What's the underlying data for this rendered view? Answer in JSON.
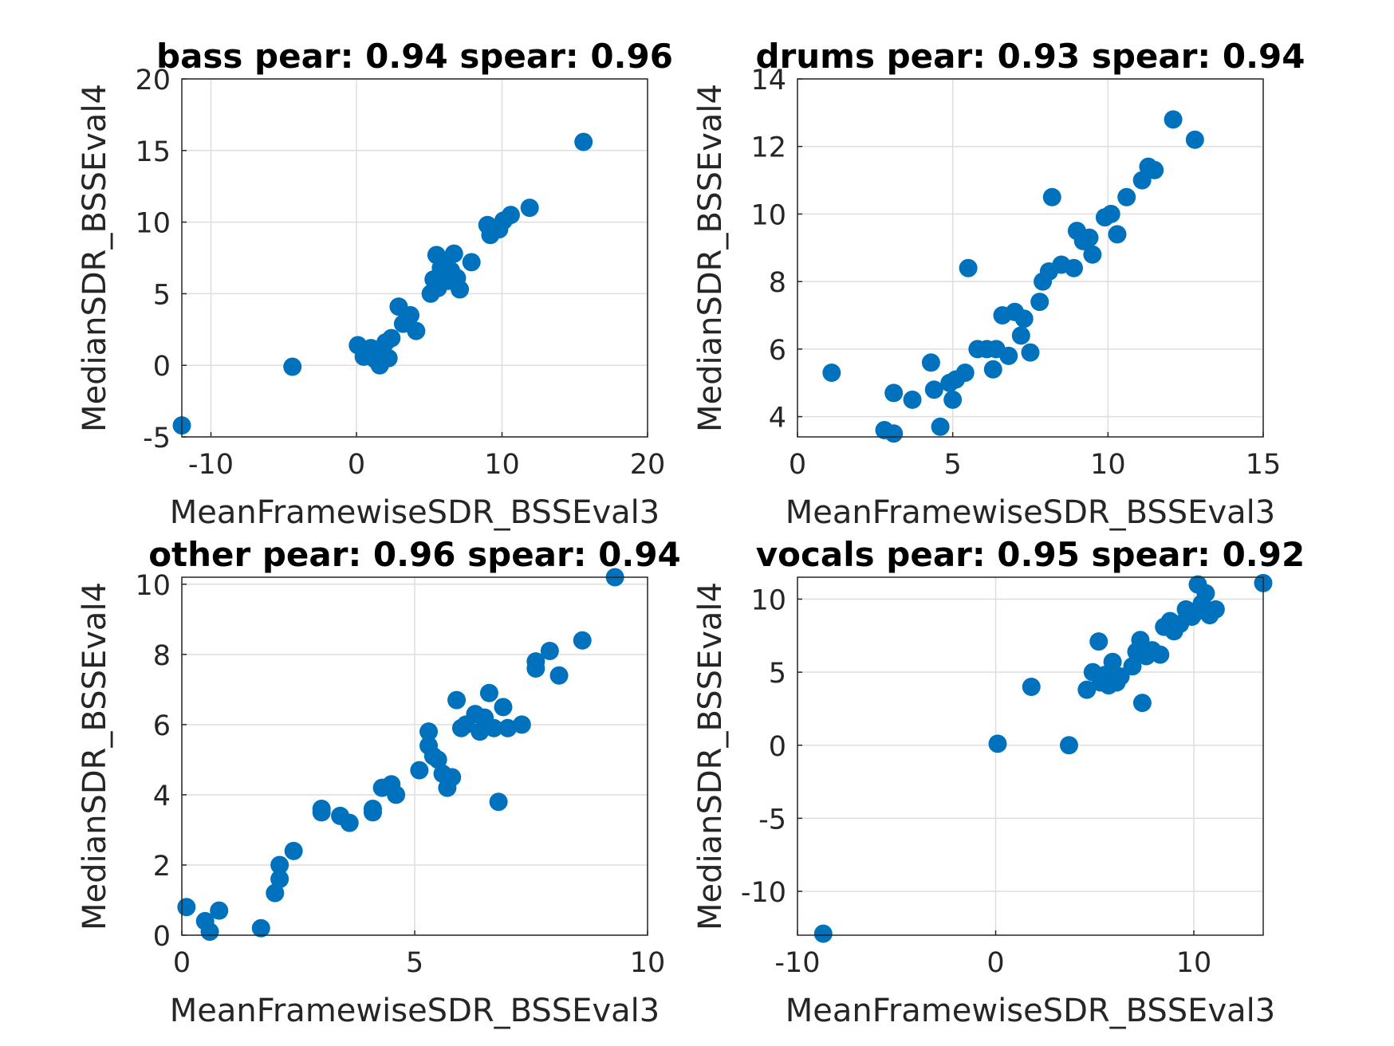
{
  "chart_data": [
    {
      "type": "scatter",
      "title": "bass pear: 0.94 spear: 0.96",
      "xlabel": "MeanFramewiseSDR_BSSEval3",
      "ylabel": "MedianSDR_BSSEval4",
      "xlim": [
        -12,
        20
      ],
      "ylim": [
        -5,
        20
      ],
      "xticks": [
        -10,
        0,
        10,
        20
      ],
      "yticks": [
        -5,
        0,
        5,
        10,
        15,
        20
      ],
      "grid": true,
      "color": "#0072BD",
      "series": [
        {
          "x": [
            -12.0,
            -4.4,
            0.1,
            0.5,
            1.0,
            1.3,
            1.6,
            1.8,
            2.0,
            2.2,
            2.4,
            2.9,
            3.2,
            3.7,
            4.1,
            5.1,
            5.3,
            5.5,
            5.6,
            5.8,
            5.9,
            6.1,
            6.3,
            6.5,
            6.7,
            6.9,
            7.1,
            7.9,
            9.0,
            9.2,
            9.8,
            10.1,
            10.6,
            11.9,
            15.6
          ],
          "y": [
            -4.2,
            -0.1,
            1.4,
            0.6,
            1.2,
            0.4,
            0.0,
            0.9,
            1.6,
            0.5,
            1.9,
            4.1,
            2.9,
            3.5,
            2.4,
            5.0,
            6.0,
            7.7,
            5.4,
            6.8,
            6.2,
            7.2,
            5.9,
            6.6,
            7.8,
            6.1,
            5.3,
            7.2,
            9.8,
            9.1,
            9.5,
            10.1,
            10.5,
            11.0,
            15.6
          ]
        }
      ]
    },
    {
      "type": "scatter",
      "title": "drums pear: 0.93 spear: 0.94",
      "xlabel": "MeanFramewiseSDR_BSSEval3",
      "ylabel": "MedianSDR_BSSEval4",
      "xlim": [
        0,
        15
      ],
      "ylim": [
        3.4,
        14
      ],
      "xticks": [
        0,
        5,
        10,
        15
      ],
      "yticks": [
        4,
        6,
        8,
        10,
        12,
        14
      ],
      "grid": true,
      "color": "#0072BD",
      "series": [
        {
          "x": [
            1.1,
            2.8,
            3.1,
            3.1,
            3.7,
            4.3,
            4.4,
            4.6,
            4.9,
            5.0,
            5.1,
            5.4,
            5.5,
            5.8,
            6.1,
            6.3,
            6.4,
            6.6,
            6.8,
            7.0,
            7.2,
            7.3,
            7.5,
            7.8,
            7.9,
            8.1,
            8.2,
            8.5,
            8.9,
            9.0,
            9.2,
            9.4,
            9.5,
            9.9,
            10.1,
            10.3,
            10.6,
            11.1,
            11.3,
            11.5,
            12.1,
            12.8
          ],
          "y": [
            5.3,
            3.6,
            3.5,
            4.7,
            4.5,
            5.6,
            4.8,
            3.7,
            5.0,
            4.5,
            5.1,
            5.3,
            8.4,
            6.0,
            6.0,
            5.4,
            6.0,
            7.0,
            5.8,
            7.1,
            6.4,
            6.9,
            5.9,
            7.4,
            8.0,
            8.3,
            10.5,
            8.5,
            8.4,
            9.5,
            9.2,
            9.3,
            8.8,
            9.9,
            10.0,
            9.4,
            10.5,
            11.0,
            11.4,
            11.3,
            12.8,
            12.2
          ]
        }
      ]
    },
    {
      "type": "scatter",
      "title": "other pear: 0.96 spear: 0.94",
      "xlabel": "MeanFramewiseSDR_BSSEval3",
      "ylabel": "MedianSDR_BSSEval4",
      "xlim": [
        0,
        10
      ],
      "ylim": [
        0,
        10.2
      ],
      "xticks": [
        0,
        5,
        10
      ],
      "yticks": [
        0,
        2,
        4,
        6,
        8,
        10
      ],
      "grid": true,
      "color": "#0072BD",
      "series": [
        {
          "x": [
            0.1,
            0.5,
            0.6,
            0.8,
            1.7,
            2.0,
            2.1,
            2.1,
            2.4,
            3.0,
            3.0,
            3.4,
            3.6,
            4.1,
            4.1,
            4.3,
            4.5,
            4.6,
            5.1,
            5.3,
            5.3,
            5.4,
            5.5,
            5.6,
            5.7,
            5.8,
            5.9,
            6.0,
            6.1,
            6.3,
            6.4,
            6.5,
            6.6,
            6.7,
            6.8,
            6.9,
            7.0,
            7.3,
            7.6,
            7.6,
            7.9,
            8.1,
            8.6,
            9.3
          ],
          "y": [
            0.8,
            0.4,
            0.1,
            0.7,
            0.2,
            1.2,
            1.6,
            2.0,
            2.4,
            3.5,
            3.6,
            3.4,
            3.2,
            3.6,
            3.5,
            4.2,
            4.3,
            4.0,
            4.7,
            5.8,
            5.4,
            5.1,
            5.0,
            4.6,
            4.2,
            4.5,
            6.7,
            5.9,
            6.0,
            6.3,
            5.8,
            6.2,
            6.9,
            5.9,
            3.8,
            6.5,
            5.9,
            6.0,
            7.6,
            7.8,
            8.1,
            7.4,
            8.4,
            10.2
          ]
        }
      ]
    },
    {
      "type": "scatter",
      "title": "vocals pear: 0.95 spear: 0.92",
      "xlabel": "MeanFramewiseSDR_BSSEval3",
      "ylabel": "MedianSDR_BSSEval4",
      "xlim": [
        -10,
        13.5
      ],
      "ylim": [
        -13,
        11.5
      ],
      "xticks": [
        -10,
        0,
        10
      ],
      "yticks": [
        -10,
        -5,
        0,
        5,
        10
      ],
      "grid": true,
      "color": "#0072BD",
      "series": [
        {
          "x": [
            -8.7,
            0.1,
            1.8,
            3.7,
            4.6,
            4.9,
            5.2,
            5.3,
            5.5,
            5.7,
            5.9,
            6.1,
            6.3,
            6.9,
            7.1,
            7.3,
            7.4,
            7.6,
            7.9,
            8.3,
            8.5,
            8.8,
            9.0,
            9.3,
            9.6,
            9.9,
            10.0,
            10.2,
            10.4,
            10.6,
            10.8,
            11.1,
            13.5
          ],
          "y": [
            -12.9,
            0.1,
            4.0,
            0.0,
            3.8,
            5.0,
            7.1,
            4.3,
            4.8,
            4.1,
            5.7,
            4.3,
            4.7,
            5.4,
            6.4,
            7.2,
            2.9,
            6.1,
            6.5,
            6.2,
            8.1,
            8.5,
            7.8,
            8.3,
            9.3,
            8.8,
            9.0,
            11.0,
            9.7,
            10.4,
            8.9,
            9.3,
            11.1
          ]
        }
      ]
    }
  ]
}
